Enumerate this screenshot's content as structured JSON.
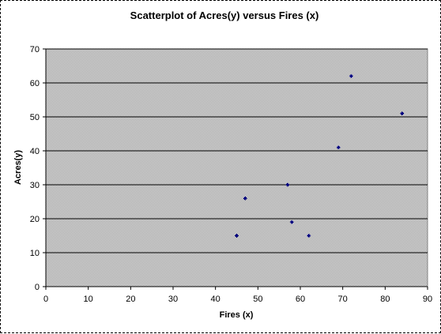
{
  "chart_data": {
    "type": "scatter",
    "title": "Scatterplot of Acres(y) versus Fires (x)",
    "xlabel": "Fires (x)",
    "ylabel": "Acres(y)",
    "xlim": [
      0,
      90
    ],
    "ylim": [
      0,
      70
    ],
    "x_ticks": [
      0,
      10,
      20,
      30,
      40,
      50,
      60,
      70,
      80,
      90
    ],
    "y_ticks": [
      0,
      10,
      20,
      30,
      40,
      50,
      60,
      70
    ],
    "grid": true,
    "legend": "none",
    "colors": {
      "marker": "#000080",
      "plot_background": "#c0c0c0",
      "gridline": "#000000"
    },
    "series": [
      {
        "x": [
          45,
          47,
          57,
          58,
          62,
          69,
          72,
          84
        ],
        "y": [
          15,
          26,
          30,
          19,
          15,
          41,
          62,
          51
        ]
      }
    ]
  }
}
